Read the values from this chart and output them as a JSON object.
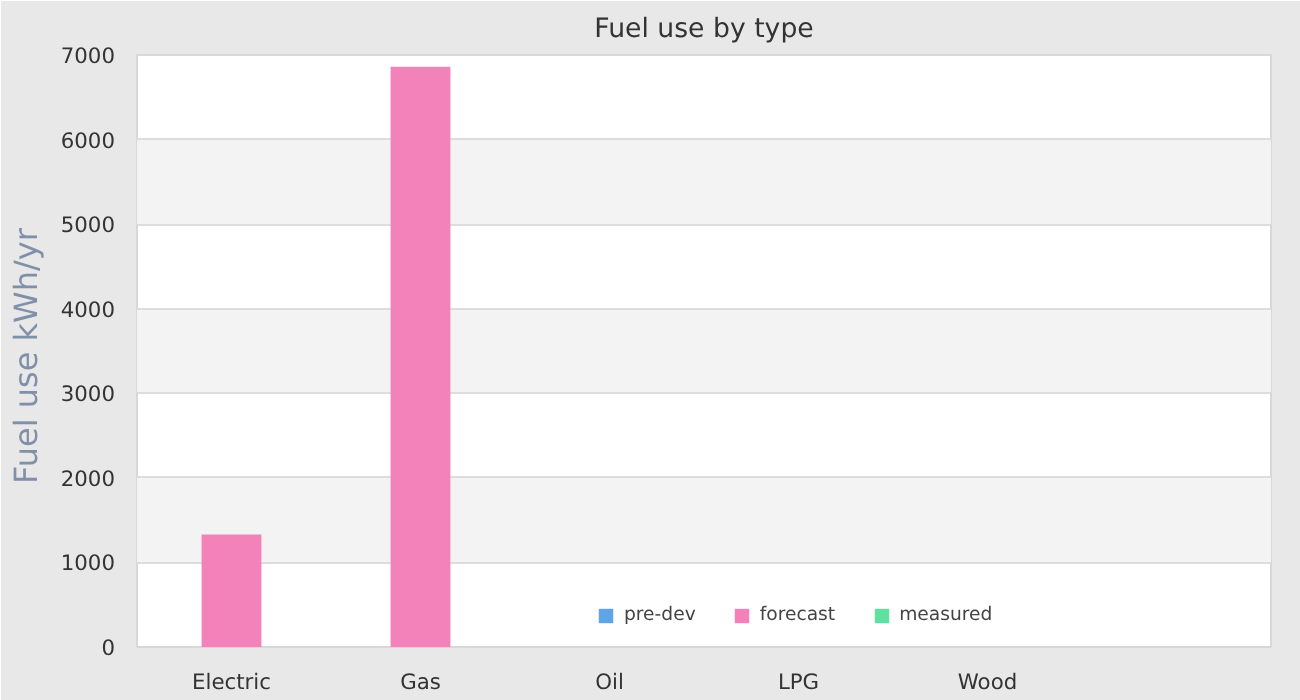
{
  "chart_data": {
    "type": "bar",
    "title": "Fuel use by type",
    "ylabel": "Fuel use  kWh/yr",
    "categories": [
      "Electric",
      "Gas",
      "Oil",
      "LPG",
      "Wood",
      null
    ],
    "series": [
      {
        "name": "pre-dev",
        "color": "#5da5e8",
        "values": [
          null,
          null,
          null,
          null,
          null,
          null
        ]
      },
      {
        "name": "forecast",
        "color": "#f282b9",
        "values": [
          1330,
          6860,
          null,
          null,
          null,
          null
        ]
      },
      {
        "name": "measured",
        "color": "#5fe0a0",
        "values": [
          null,
          null,
          null,
          null,
          null,
          null
        ]
      }
    ],
    "ylim": [
      0,
      7000
    ],
    "yticks": [
      0,
      1000,
      2000,
      3000,
      4000,
      5000,
      6000,
      7000
    ],
    "grid": "y",
    "legend": "bottom"
  }
}
